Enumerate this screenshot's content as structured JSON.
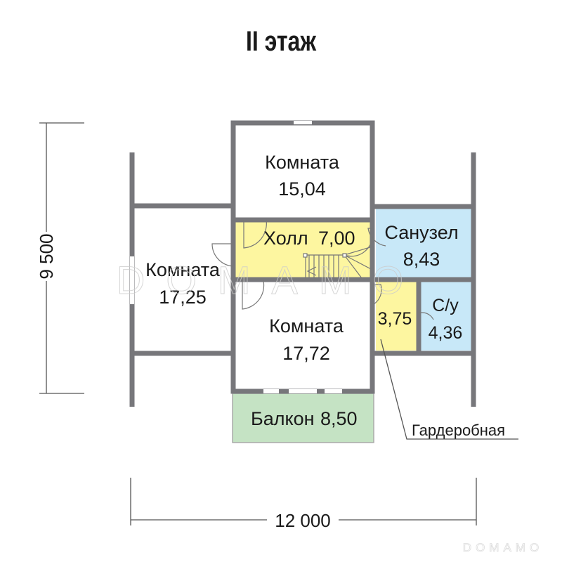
{
  "title": "II этаж",
  "dimensions": {
    "height": "9 500",
    "width": "12 000"
  },
  "rooms": [
    {
      "name": "Комната",
      "area": "15,04"
    },
    {
      "name": "Комната",
      "area": "17,25"
    },
    {
      "name": "Холл",
      "area": "7,00"
    },
    {
      "name": "Санузел",
      "area": "8,43"
    },
    {
      "name": "Комната",
      "area": "17,72"
    },
    {
      "name": "",
      "area": "3,75"
    },
    {
      "name": "С/у",
      "area": "4,36"
    },
    {
      "name": "Балкон",
      "area": "8,50"
    }
  ],
  "callout": "Гардеробная",
  "watermark": "DOMAMO",
  "colors": {
    "wall": "#77777b",
    "hall": "#fdf6a0",
    "bath": "#c8e8f8",
    "balcony": "#c5e3c4"
  }
}
